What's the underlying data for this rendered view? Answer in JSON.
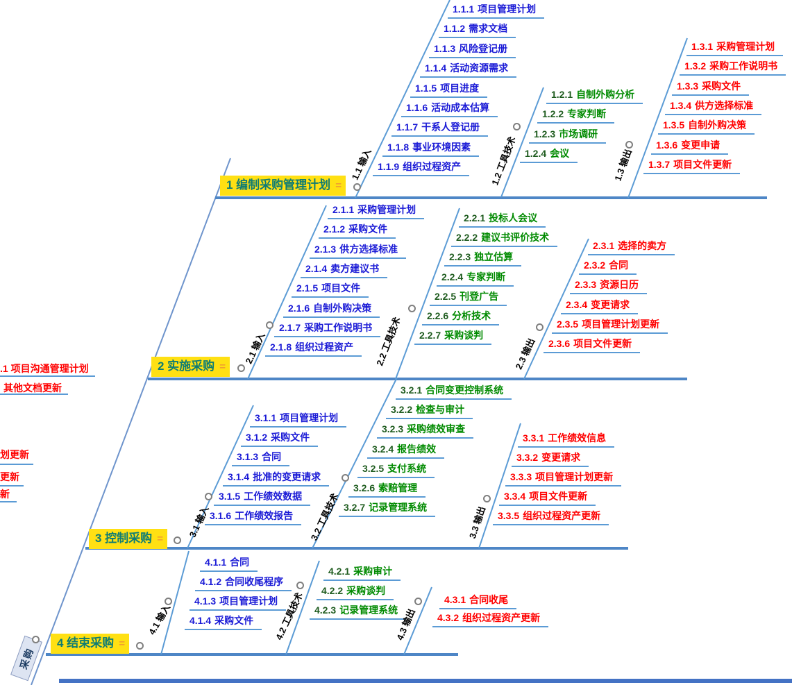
{
  "root": {
    "label": "采购"
  },
  "colors": {
    "input": "#1a1ad6",
    "tools": "#008a00",
    "tools_num": "#1f5c1f",
    "output": "#ff0000",
    "line": "#5b9bd5",
    "header_bg": "#ffe013",
    "header_text": "#0e7c74",
    "notes_icon": "#f0a030"
  },
  "sections": [
    {
      "title": "1 编制采购管理计划",
      "notes_icon": "=",
      "branches": [
        {
          "id": "1.1",
          "label": "1.1 输入",
          "type": "input",
          "items": [
            {
              "n": "1.1.1",
              "t": "项目管理计划"
            },
            {
              "n": "1.1.2",
              "t": "需求文档"
            },
            {
              "n": "1.1.3",
              "t": "风险登记册"
            },
            {
              "n": "1.1.4",
              "t": "活动资源需求"
            },
            {
              "n": "1.1.5",
              "t": "项目进度"
            },
            {
              "n": "1.1.6",
              "t": "活动成本估算"
            },
            {
              "n": "1.1.7",
              "t": "干系人登记册"
            },
            {
              "n": "1.1.8",
              "t": "事业环境因素"
            },
            {
              "n": "1.1.9",
              "t": "组织过程资产"
            }
          ]
        },
        {
          "id": "1.2",
          "label": "1.2 工具技术",
          "type": "tools",
          "items": [
            {
              "n": "1.2.1",
              "t": "自制外购分析"
            },
            {
              "n": "1.2.2",
              "t": "专家判断"
            },
            {
              "n": "1.2.3",
              "t": "市场调研"
            },
            {
              "n": "1.2.4",
              "t": "会议"
            }
          ]
        },
        {
          "id": "1.3",
          "label": "1.3 输出",
          "type": "output",
          "items": [
            {
              "n": "1.3.1",
              "t": "采购管理计划"
            },
            {
              "n": "1.3.2",
              "t": "采购工作说明书"
            },
            {
              "n": "1.3.3",
              "t": "采购文件"
            },
            {
              "n": "1.3.4",
              "t": "供方选择标准"
            },
            {
              "n": "1.3.5",
              "t": "自制外购决策"
            },
            {
              "n": "1.3.6",
              "t": "变更申请"
            },
            {
              "n": "1.3.7",
              "t": "项目文件更新"
            }
          ]
        }
      ]
    },
    {
      "title": "2 实施采购",
      "notes_icon": "=",
      "branches": [
        {
          "id": "2.1",
          "label": "2.1 输入",
          "type": "input",
          "items": [
            {
              "n": "2.1.1",
              "t": "采购管理计划"
            },
            {
              "n": "2.1.2",
              "t": "采购文件"
            },
            {
              "n": "2.1.3",
              "t": "供方选择标准"
            },
            {
              "n": "2.1.4",
              "t": "卖方建议书"
            },
            {
              "n": "2.1.5",
              "t": "项目文件"
            },
            {
              "n": "2.1.6",
              "t": "自制外购决策"
            },
            {
              "n": "2.1.7",
              "t": "采购工作说明书"
            },
            {
              "n": "2.1.8",
              "t": "组织过程资产"
            }
          ]
        },
        {
          "id": "2.2",
          "label": "2.2 工具技术",
          "type": "tools",
          "items": [
            {
              "n": "2.2.1",
              "t": "投标人会议"
            },
            {
              "n": "2.2.2",
              "t": "建议书评价技术"
            },
            {
              "n": "2.2.3",
              "t": "独立估算"
            },
            {
              "n": "2.2.4",
              "t": "专家判断"
            },
            {
              "n": "2.2.5",
              "t": "刊登广告"
            },
            {
              "n": "2.2.6",
              "t": "分析技术"
            },
            {
              "n": "2.2.7",
              "t": "采购谈判"
            }
          ]
        },
        {
          "id": "2.3",
          "label": "2.3 输出",
          "type": "output",
          "items": [
            {
              "n": "2.3.1",
              "t": "选择的卖方"
            },
            {
              "n": "2.3.2",
              "t": "合同"
            },
            {
              "n": "2.3.3",
              "t": "资源日历"
            },
            {
              "n": "2.3.4",
              "t": "变更请求"
            },
            {
              "n": "2.3.5",
              "t": "项目管理计划更新"
            },
            {
              "n": "2.3.6",
              "t": "项目文件更新"
            }
          ]
        }
      ]
    },
    {
      "title": "3 控制采购",
      "notes_icon": "=",
      "branches": [
        {
          "id": "3.1",
          "label": "3.1 输入",
          "type": "input",
          "items": [
            {
              "n": "3.1.1",
              "t": "项目管理计划"
            },
            {
              "n": "3.1.2",
              "t": "采购文件"
            },
            {
              "n": "3.1.3",
              "t": "合同"
            },
            {
              "n": "3.1.4",
              "t": "批准的变更请求"
            },
            {
              "n": "3.1.5",
              "t": "工作绩效数据"
            },
            {
              "n": "3.1.6",
              "t": "工作绩效报告"
            }
          ]
        },
        {
          "id": "3.2",
          "label": "3.2 工具技术",
          "type": "tools",
          "items": [
            {
              "n": "3.2.1",
              "t": "合同变更控制系统"
            },
            {
              "n": "3.2.2",
              "t": "检查与审计"
            },
            {
              "n": "3.2.3",
              "t": "采购绩效审查"
            },
            {
              "n": "3.2.4",
              "t": "报告绩效"
            },
            {
              "n": "3.2.5",
              "t": "支付系统"
            },
            {
              "n": "3.2.6",
              "t": "索赔管理"
            },
            {
              "n": "3.2.7",
              "t": "记录管理系统"
            }
          ]
        },
        {
          "id": "3.3",
          "label": "3.3 输出",
          "type": "output",
          "items": [
            {
              "n": "3.3.1",
              "t": "工作绩效信息"
            },
            {
              "n": "3.3.2",
              "t": "变更请求"
            },
            {
              "n": "3.3.3",
              "t": "项目管理计划更新"
            },
            {
              "n": "3.3.4",
              "t": "项目文件更新"
            },
            {
              "n": "3.3.5",
              "t": "组织过程资产更新"
            }
          ]
        }
      ]
    },
    {
      "title": "4 结束采购",
      "notes_icon": "=",
      "branches": [
        {
          "id": "4.1",
          "label": "4.1 输入",
          "type": "input",
          "items": [
            {
              "n": "4.1.1",
              "t": "合同"
            },
            {
              "n": "4.1.2",
              "t": "合同收尾程序"
            },
            {
              "n": "4.1.3",
              "t": "项目管理计划"
            },
            {
              "n": "4.1.4",
              "t": "采购文件"
            }
          ]
        },
        {
          "id": "4.2",
          "label": "4.2 工具技术",
          "type": "tools",
          "items": [
            {
              "n": "4.2.1",
              "t": "采购审计"
            },
            {
              "n": "4.2.2",
              "t": "采购谈判"
            },
            {
              "n": "4.2.3",
              "t": "记录管理系统"
            }
          ]
        },
        {
          "id": "4.3",
          "label": "4.3 输出",
          "type": "output",
          "items": [
            {
              "n": "4.3.1",
              "t": "合同收尾"
            },
            {
              "n": "4.3.2",
              "t": "组织过程资产更新"
            }
          ]
        }
      ]
    }
  ],
  "edge_items": [
    {
      "t": ".1 项目沟通管理计划"
    },
    {
      "t": "其他文档更新"
    },
    {
      "t": "划更新"
    },
    {
      "t": "更新"
    },
    {
      "t": "新"
    }
  ]
}
